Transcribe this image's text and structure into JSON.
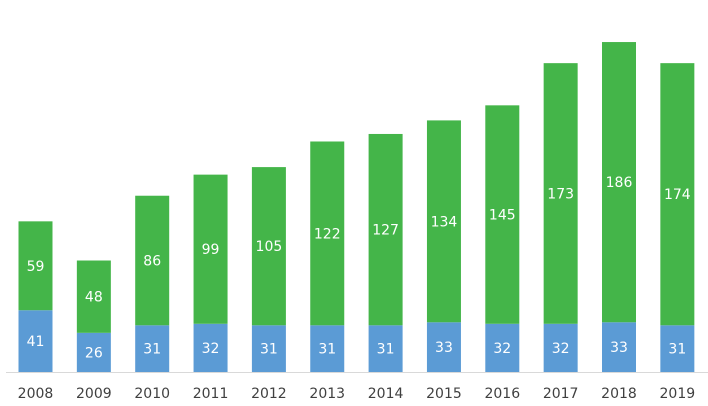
{
  "chart_data": {
    "type": "bar",
    "stacked": true,
    "categories": [
      "2008",
      "2009",
      "2010",
      "2011",
      "2012",
      "2013",
      "2014",
      "2015",
      "2016",
      "2017",
      "2018",
      "2019"
    ],
    "series": [
      {
        "color": "#5b9bd5",
        "values": [
          41,
          26,
          31,
          32,
          31,
          31,
          31,
          33,
          32,
          32,
          33,
          31
        ]
      },
      {
        "color": "#44b549",
        "values": [
          59,
          48,
          86,
          99,
          105,
          122,
          127,
          134,
          145,
          173,
          186,
          174
        ]
      }
    ],
    "title": "",
    "xlabel": "",
    "ylabel": "",
    "ylim": [
      0,
      227
    ],
    "grid": false,
    "legend": "none",
    "axis_color": "#d9d9d9",
    "label_color": "#ffffff",
    "tick_color": "#404040"
  }
}
